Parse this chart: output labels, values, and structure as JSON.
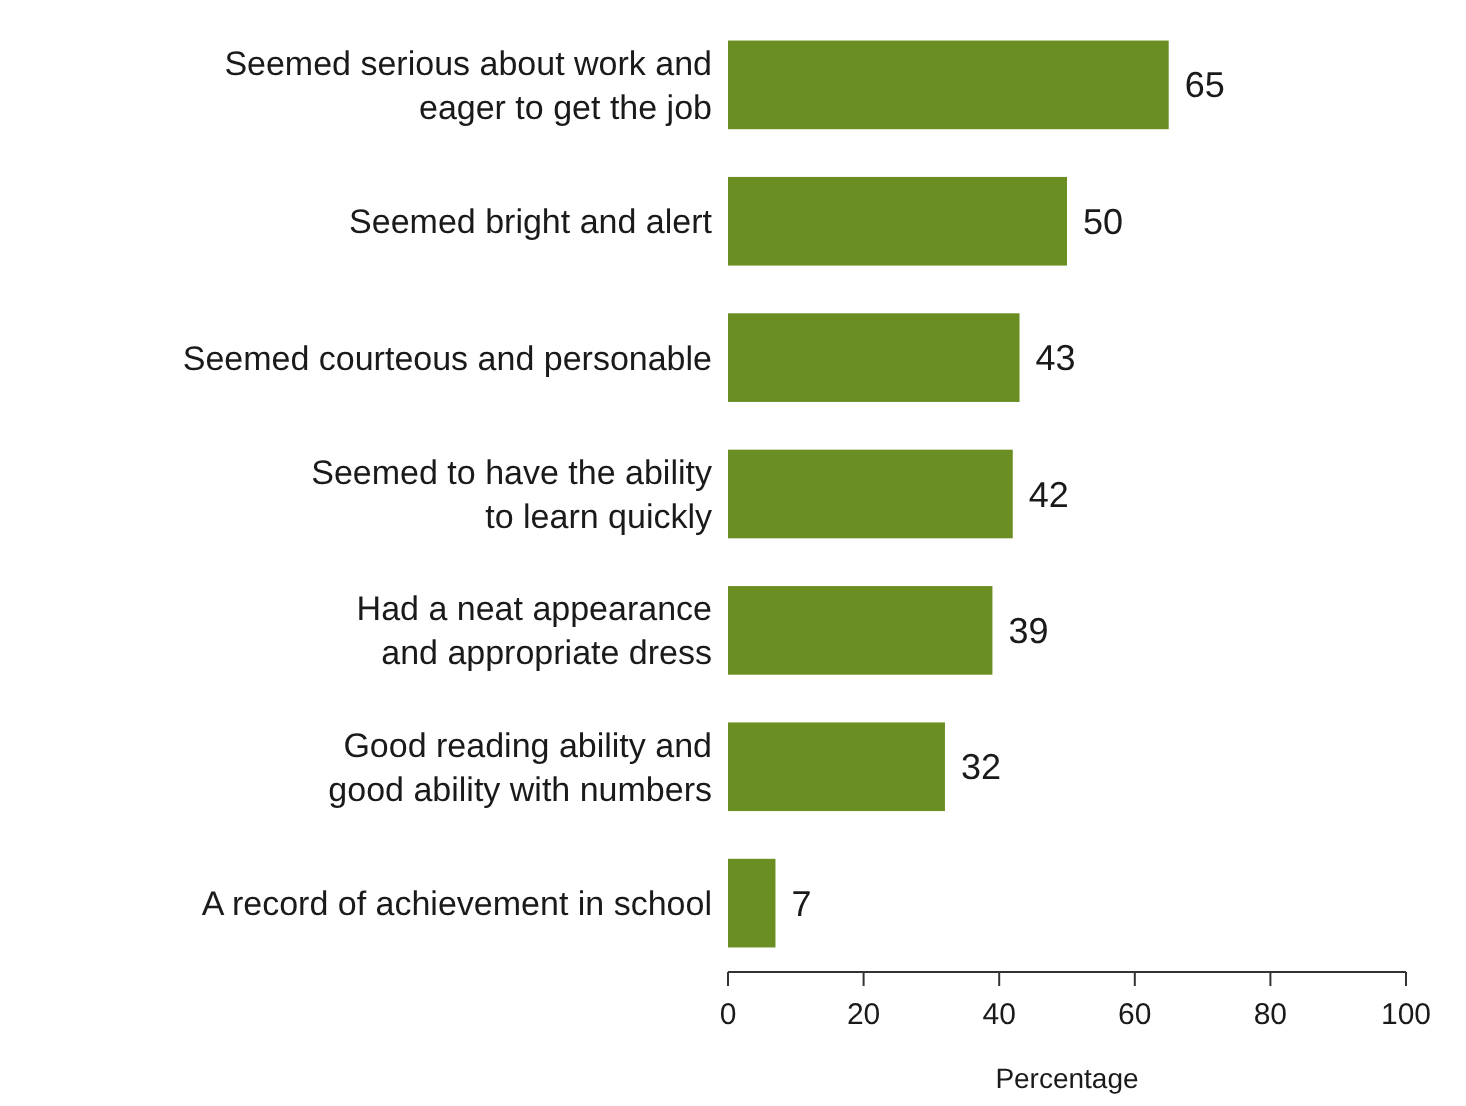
{
  "chart_data": {
    "type": "bar",
    "orientation": "horizontal",
    "categories": [
      "Seemed serious about work and\neager to get the job",
      "Seemed bright and alert",
      "Seemed courteous and personable",
      "Seemed to have the ability\nto learn quickly",
      "Had a neat appearance\nand appropriate dress",
      "Good reading ability and\ngood ability with numbers",
      "A record of achievement in school"
    ],
    "values": [
      65,
      50,
      43,
      42,
      39,
      32,
      7
    ],
    "color": "#6b8e23",
    "xlim": [
      0,
      100
    ],
    "xticks": [
      0,
      20,
      40,
      60,
      80,
      100
    ],
    "xlabel": "Percentage",
    "data_labels": true
  }
}
